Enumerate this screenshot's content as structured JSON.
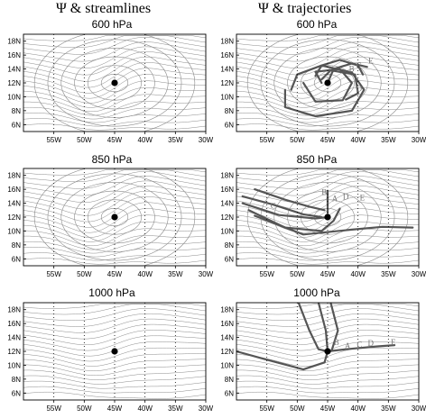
{
  "columns": [
    {
      "title": "Ψ & streamlines"
    },
    {
      "title": "Ψ & trajectories"
    }
  ],
  "levels": [
    "600 hPa",
    "850 hPa",
    "1000 hPa"
  ],
  "axes": {
    "x_ticks": [
      "55W",
      "50W",
      "45W",
      "40W",
      "35W",
      "30W"
    ],
    "y_ticks": [
      "18N",
      "16N",
      "14N",
      "12N",
      "10N",
      "8N",
      "6N"
    ]
  },
  "panels": [
    {
      "id": "600-stream",
      "column": 0,
      "level": 0,
      "kind": "streamlines",
      "vortex": "closed-circulation",
      "labels": []
    },
    {
      "id": "600-traj",
      "column": 1,
      "level": 0,
      "kind": "trajectories",
      "vortex": "closed-circulation",
      "labels": [
        "B",
        "C",
        "E",
        "D"
      ]
    },
    {
      "id": "850-stream",
      "column": 0,
      "level": 1,
      "kind": "streamlines",
      "vortex": "closed-circulation",
      "labels": []
    },
    {
      "id": "850-traj",
      "column": 1,
      "level": 1,
      "kind": "trajectories",
      "vortex": "closed-circulation",
      "labels": [
        "C",
        "B",
        "A",
        "D",
        "E"
      ]
    },
    {
      "id": "1000-stream",
      "column": 0,
      "level": 2,
      "kind": "streamlines",
      "vortex": "weak-trough",
      "labels": []
    },
    {
      "id": "1000-traj",
      "column": 1,
      "level": 2,
      "kind": "trajectories",
      "vortex": "weak-trough",
      "labels": [
        "B",
        "A",
        "C",
        "D",
        "E"
      ]
    }
  ],
  "colors": {
    "contour": "#8a8a8a",
    "trajectory": "#555555",
    "center_dot": "#000000",
    "grid": "#000000"
  }
}
